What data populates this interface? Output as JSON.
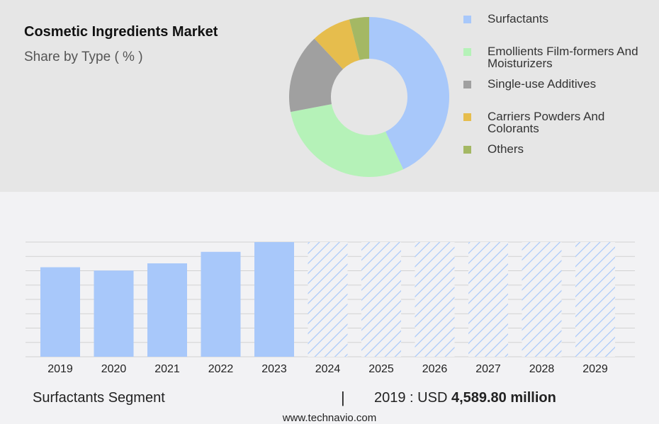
{
  "header": {
    "title": "Cosmetic Ingredients Market",
    "subtitle": "Share by Type ( % )"
  },
  "chart_data": [
    {
      "type": "pie",
      "variant": "donut",
      "title": "Cosmetic Ingredients Market",
      "subtitle": "Share by Type ( % )",
      "legend_position": "right",
      "series": [
        {
          "name": "Surfactants",
          "value": 43,
          "color": "#a8c8fa"
        },
        {
          "name": "Emollients Film-formers And Moisturizers",
          "value": 29,
          "color": "#b5f2b8"
        },
        {
          "name": "Single-use Additives",
          "value": 16,
          "color": "#a0a0a0"
        },
        {
          "name": "Carriers Powders And Colorants",
          "value": 8,
          "color": "#e6bd4d"
        },
        {
          "name": "Others",
          "value": 4,
          "color": "#a4b864"
        }
      ]
    },
    {
      "type": "bar",
      "categories": [
        "2019",
        "2020",
        "2021",
        "2022",
        "2023",
        "2024",
        "2025",
        "2026",
        "2027",
        "2028",
        "2029"
      ],
      "values": [
        4589.8,
        4420,
        4790,
        5380,
        5880,
        null,
        null,
        null,
        null,
        null,
        null
      ],
      "forecast_categories": [
        "2024",
        "2025",
        "2026",
        "2027",
        "2028",
        "2029"
      ],
      "forecast_style": "hatched",
      "bar_color": "#a8c8fa",
      "grid": true,
      "ylim": [
        0,
        5880
      ]
    }
  ],
  "footer": {
    "segment": "Surfactants Segment",
    "separator": "|",
    "value_prefix": "2019 : USD ",
    "value": "4,589.80 million",
    "url": "www.technavio.com"
  }
}
